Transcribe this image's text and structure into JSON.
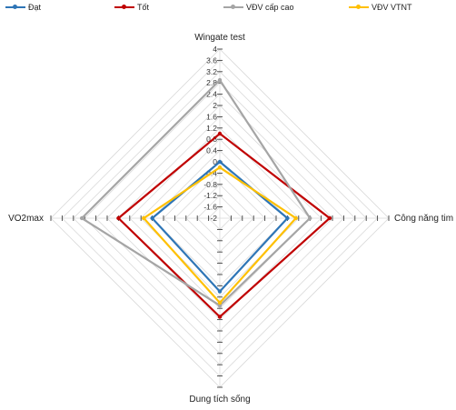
{
  "chart_data": {
    "type": "radar",
    "axes": [
      "Wingate test",
      "Công năng tim",
      "Dung tích sống",
      "VO2max"
    ],
    "tick_labels": [
      "-2",
      "-1.6",
      "-1.2",
      "-0.8",
      "-0.4",
      "0",
      "0.4",
      "0.8",
      "1.2",
      "1.6",
      "2",
      "2.4",
      "2.8",
      "3.2",
      "3.6",
      "4"
    ],
    "range": [
      -2,
      4
    ],
    "grid": true,
    "legend_position": "top",
    "series": [
      {
        "name": "Đạt",
        "color": "#2e75b6",
        "values": [
          0,
          0.4,
          0.6,
          0.4
        ]
      },
      {
        "name": "Tốt",
        "color": "#c00000",
        "values": [
          1.0,
          1.9,
          1.5,
          1.6
        ]
      },
      {
        "name": "VĐV cấp cao",
        "color": "#a5a5a5",
        "values": [
          2.9,
          1.2,
          1.1,
          2.9
        ]
      },
      {
        "name": "VĐV VTNT",
        "color": "#ffc000",
        "values": [
          -0.2,
          0.7,
          1.0,
          0.7
        ]
      }
    ]
  }
}
